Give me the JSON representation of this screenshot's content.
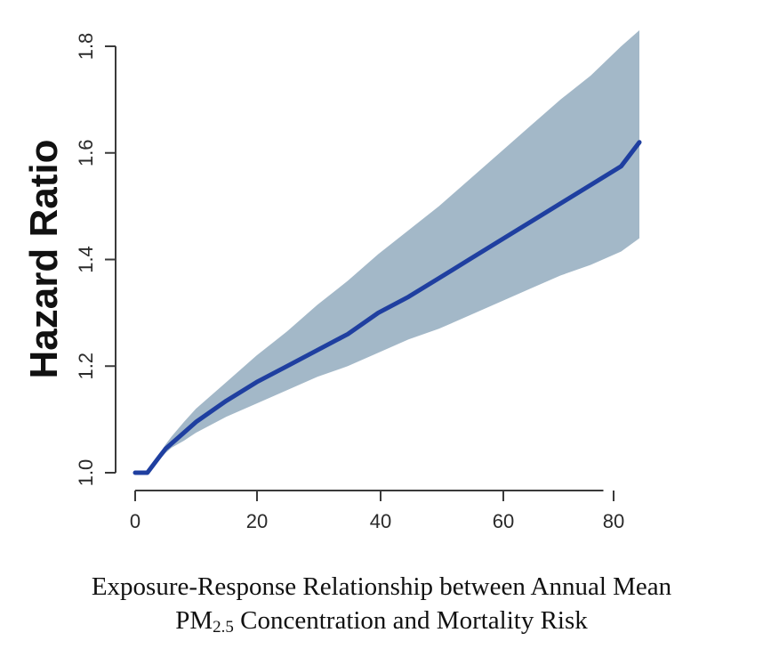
{
  "chart_data": {
    "type": "line",
    "ylabel": "Hazard Ratio",
    "xlabel": "",
    "xlim": [
      0,
      83
    ],
    "ylim": [
      1.0,
      1.8
    ],
    "x_ticks": [
      0,
      20,
      40,
      60,
      80
    ],
    "x_tick_labels": [
      "0",
      "20",
      "40",
      "60",
      "80"
    ],
    "y_ticks": [
      1.0,
      1.2,
      1.4,
      1.6,
      1.8
    ],
    "y_tick_labels": [
      "1.0",
      "1.2",
      "1.4",
      "1.6",
      "1.8"
    ],
    "grid": false,
    "colors": {
      "line": "#1f3fa0",
      "band": "#a3b8c8"
    },
    "series": [
      {
        "x": [
          0,
          2,
          3,
          4,
          5,
          6,
          8,
          10,
          15,
          20,
          25,
          30,
          35,
          40,
          45,
          50,
          55,
          60,
          65,
          70,
          75,
          80,
          83
        ],
        "y": [
          1.0,
          1.0,
          1.015,
          1.03,
          1.045,
          1.055,
          1.075,
          1.095,
          1.135,
          1.17,
          1.2,
          1.23,
          1.26,
          1.3,
          1.33,
          1.365,
          1.4,
          1.435,
          1.47,
          1.505,
          1.54,
          1.575,
          1.62
        ]
      }
    ],
    "confidence_band": {
      "x": [
        0,
        2,
        3,
        4,
        5,
        6,
        8,
        10,
        15,
        20,
        25,
        30,
        35,
        40,
        45,
        50,
        55,
        60,
        65,
        70,
        75,
        80,
        83
      ],
      "lower": [
        1.0,
        1.0,
        1.012,
        1.025,
        1.037,
        1.047,
        1.06,
        1.075,
        1.105,
        1.13,
        1.155,
        1.18,
        1.2,
        1.225,
        1.25,
        1.27,
        1.295,
        1.32,
        1.345,
        1.37,
        1.39,
        1.415,
        1.44
      ],
      "upper": [
        1.0,
        1.0,
        1.018,
        1.035,
        1.053,
        1.068,
        1.095,
        1.12,
        1.17,
        1.22,
        1.265,
        1.315,
        1.36,
        1.41,
        1.455,
        1.5,
        1.55,
        1.6,
        1.65,
        1.7,
        1.745,
        1.8,
        1.83
      ]
    }
  },
  "caption": {
    "line1": "Exposure-Response Relationship between Annual Mean",
    "line2_prefix": "PM",
    "line2_subscript": "2.5",
    "line2_suffix": " Concentration and Mortality Risk"
  }
}
